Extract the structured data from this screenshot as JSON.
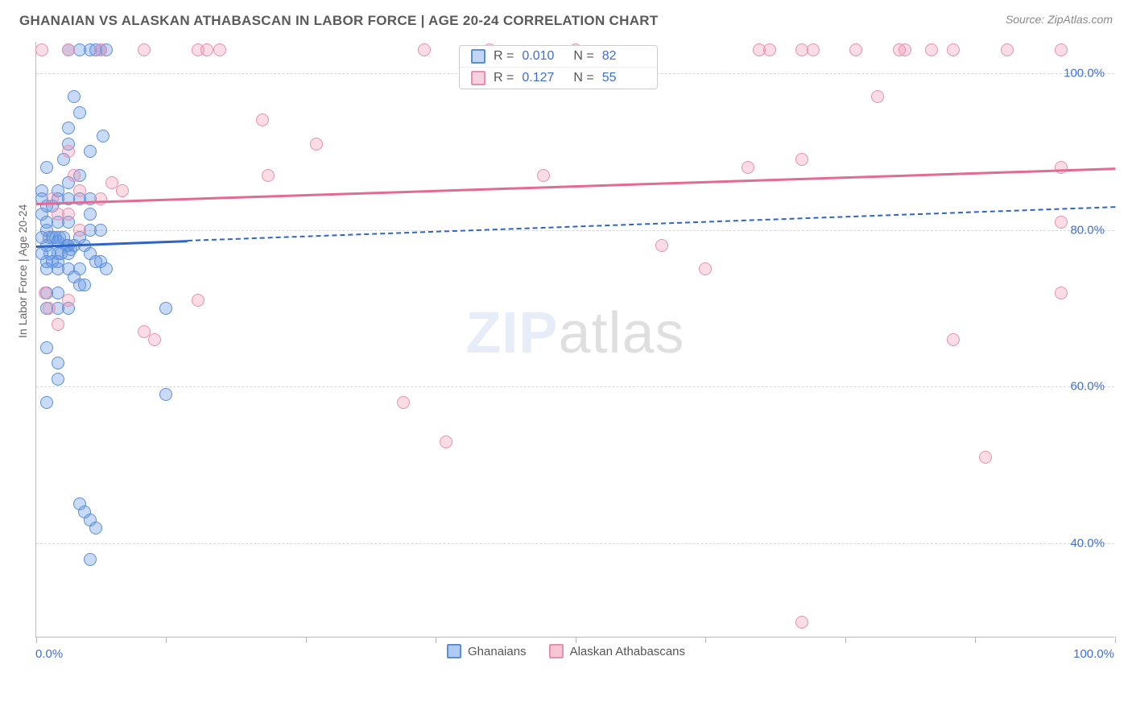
{
  "header": {
    "title": "GHANAIAN VS ALASKAN ATHABASCAN IN LABOR FORCE | AGE 20-24 CORRELATION CHART",
    "source": "Source: ZipAtlas.com"
  },
  "watermark": {
    "prefix": "ZIP",
    "suffix": "atlas"
  },
  "chart": {
    "type": "scatter",
    "ylabel": "In Labor Force | Age 20-24",
    "background_color": "#ffffff",
    "grid_color": "#d8d8d8",
    "axis_label_color": "#3b6fd6",
    "xlim": [
      0,
      100
    ],
    "ylim": [
      28,
      104
    ],
    "y_gridlines": [
      40,
      60,
      80,
      100
    ],
    "y_tick_labels": [
      "40.0%",
      "60.0%",
      "80.0%",
      "100.0%"
    ],
    "x_origin_label": "0.0%",
    "x_max_label": "100.0%",
    "x_tick_positions": [
      0,
      12,
      25,
      37,
      50,
      62,
      75,
      87,
      100
    ],
    "marker_radius": 8,
    "series": [
      {
        "id": "ghanaians",
        "label": "Ghanaians",
        "R": "0.010",
        "N": "82",
        "fill_color": "rgba(100,150,230,0.35)",
        "stroke_color": "#5a8fd8",
        "line_color": "#2e64c8",
        "trend": {
          "x1": 0,
          "y1": 78,
          "x2_solid": 14,
          "x2": 100,
          "y2": 83
        },
        "points": [
          [
            3,
            103
          ],
          [
            4,
            103
          ],
          [
            5,
            103
          ],
          [
            5.5,
            103
          ],
          [
            6,
            103
          ],
          [
            6.5,
            103
          ],
          [
            1,
            80
          ],
          [
            1.2,
            79
          ],
          [
            1.5,
            79
          ],
          [
            1.8,
            79
          ],
          [
            2,
            78.5
          ],
          [
            2.2,
            79
          ],
          [
            2.5,
            79
          ],
          [
            2.8,
            78
          ],
          [
            3,
            78
          ],
          [
            3.2,
            77.5
          ],
          [
            3.5,
            78
          ],
          [
            1,
            78
          ],
          [
            1.3,
            77
          ],
          [
            2,
            77
          ],
          [
            2.3,
            77
          ],
          [
            3,
            77
          ],
          [
            1,
            76
          ],
          [
            1.5,
            76
          ],
          [
            2,
            76
          ],
          [
            1,
            81
          ],
          [
            2,
            81
          ],
          [
            3,
            81
          ],
          [
            1,
            83
          ],
          [
            1.5,
            83
          ],
          [
            2,
            84
          ],
          [
            3,
            84
          ],
          [
            4,
            84
          ],
          [
            2,
            85
          ],
          [
            3,
            86
          ],
          [
            4,
            87
          ],
          [
            1,
            88
          ],
          [
            1,
            75
          ],
          [
            2,
            75
          ],
          [
            3,
            75
          ],
          [
            4,
            75
          ],
          [
            3.5,
            74
          ],
          [
            4,
            73
          ],
          [
            4.5,
            73
          ],
          [
            1,
            72
          ],
          [
            2,
            72
          ],
          [
            1,
            70
          ],
          [
            2,
            70
          ],
          [
            3,
            70
          ],
          [
            0.5,
            85
          ],
          [
            0.5,
            84
          ],
          [
            0.5,
            82
          ],
          [
            0.5,
            79
          ],
          [
            0.5,
            77
          ],
          [
            3,
            93
          ],
          [
            3.5,
            97
          ],
          [
            4,
            95
          ],
          [
            5,
            90
          ],
          [
            1,
            65
          ],
          [
            2,
            63
          ],
          [
            2,
            61
          ],
          [
            1,
            58
          ],
          [
            4,
            45
          ],
          [
            4.5,
            44
          ],
          [
            5,
            43
          ],
          [
            5,
            38
          ],
          [
            5.5,
            42
          ],
          [
            6,
            76
          ],
          [
            6.5,
            75
          ],
          [
            5,
            84
          ],
          [
            5,
            82
          ],
          [
            5,
            80
          ],
          [
            6,
            80
          ],
          [
            2.5,
            89
          ],
          [
            3,
            91
          ],
          [
            6.2,
            92
          ],
          [
            12,
            70
          ],
          [
            12,
            59
          ],
          [
            4,
            79
          ],
          [
            4.5,
            78
          ],
          [
            5,
            77
          ],
          [
            5.5,
            76
          ]
        ]
      },
      {
        "id": "athabascans",
        "label": "Alaskan Athabascans",
        "R": "0.127",
        "N": "55",
        "fill_color": "rgba(240,140,170,0.30)",
        "stroke_color": "#e88fae",
        "line_color": "#e36a94",
        "trend": {
          "x1": 0,
          "y1": 83.5,
          "x2_solid": 100,
          "x2": 100,
          "y2": 88
        },
        "points": [
          [
            0.5,
            103
          ],
          [
            3,
            103
          ],
          [
            6,
            103
          ],
          [
            10,
            103
          ],
          [
            15,
            103
          ],
          [
            15.8,
            103
          ],
          [
            17,
            103
          ],
          [
            36,
            103
          ],
          [
            42,
            103
          ],
          [
            50,
            103
          ],
          [
            67,
            103
          ],
          [
            68,
            103
          ],
          [
            71,
            103
          ],
          [
            72,
            103
          ],
          [
            76,
            103
          ],
          [
            80,
            103
          ],
          [
            80.5,
            103
          ],
          [
            83,
            103
          ],
          [
            85,
            103
          ],
          [
            90,
            103
          ],
          [
            95,
            103
          ],
          [
            3,
            90
          ],
          [
            3.5,
            87
          ],
          [
            4,
            85
          ],
          [
            10,
            67
          ],
          [
            11,
            66
          ],
          [
            8,
            85
          ],
          [
            21,
            94
          ],
          [
            21.5,
            87
          ],
          [
            26,
            91
          ],
          [
            15,
            71
          ],
          [
            34,
            58
          ],
          [
            38,
            53
          ],
          [
            47,
            87
          ],
          [
            58,
            78
          ],
          [
            66,
            88
          ],
          [
            71,
            89
          ],
          [
            62,
            75
          ],
          [
            78,
            97
          ],
          [
            85,
            66
          ],
          [
            71,
            30
          ],
          [
            88,
            51
          ],
          [
            95,
            81
          ],
          [
            95,
            88
          ],
          [
            95,
            72
          ],
          [
            2,
            82
          ],
          [
            1.5,
            84
          ],
          [
            3,
            82
          ],
          [
            4,
            80
          ],
          [
            6,
            84
          ],
          [
            7,
            86
          ],
          [
            0.8,
            72
          ],
          [
            1.2,
            70
          ],
          [
            3,
            71
          ],
          [
            2,
            68
          ]
        ]
      }
    ]
  },
  "legend_bottom": {
    "items": [
      {
        "label": "Ghanaians",
        "fill": "rgba(100,150,230,0.5)",
        "stroke": "#5a8fd8"
      },
      {
        "label": "Alaskan Athabascans",
        "fill": "rgba(240,140,170,0.5)",
        "stroke": "#e88fae"
      }
    ]
  }
}
